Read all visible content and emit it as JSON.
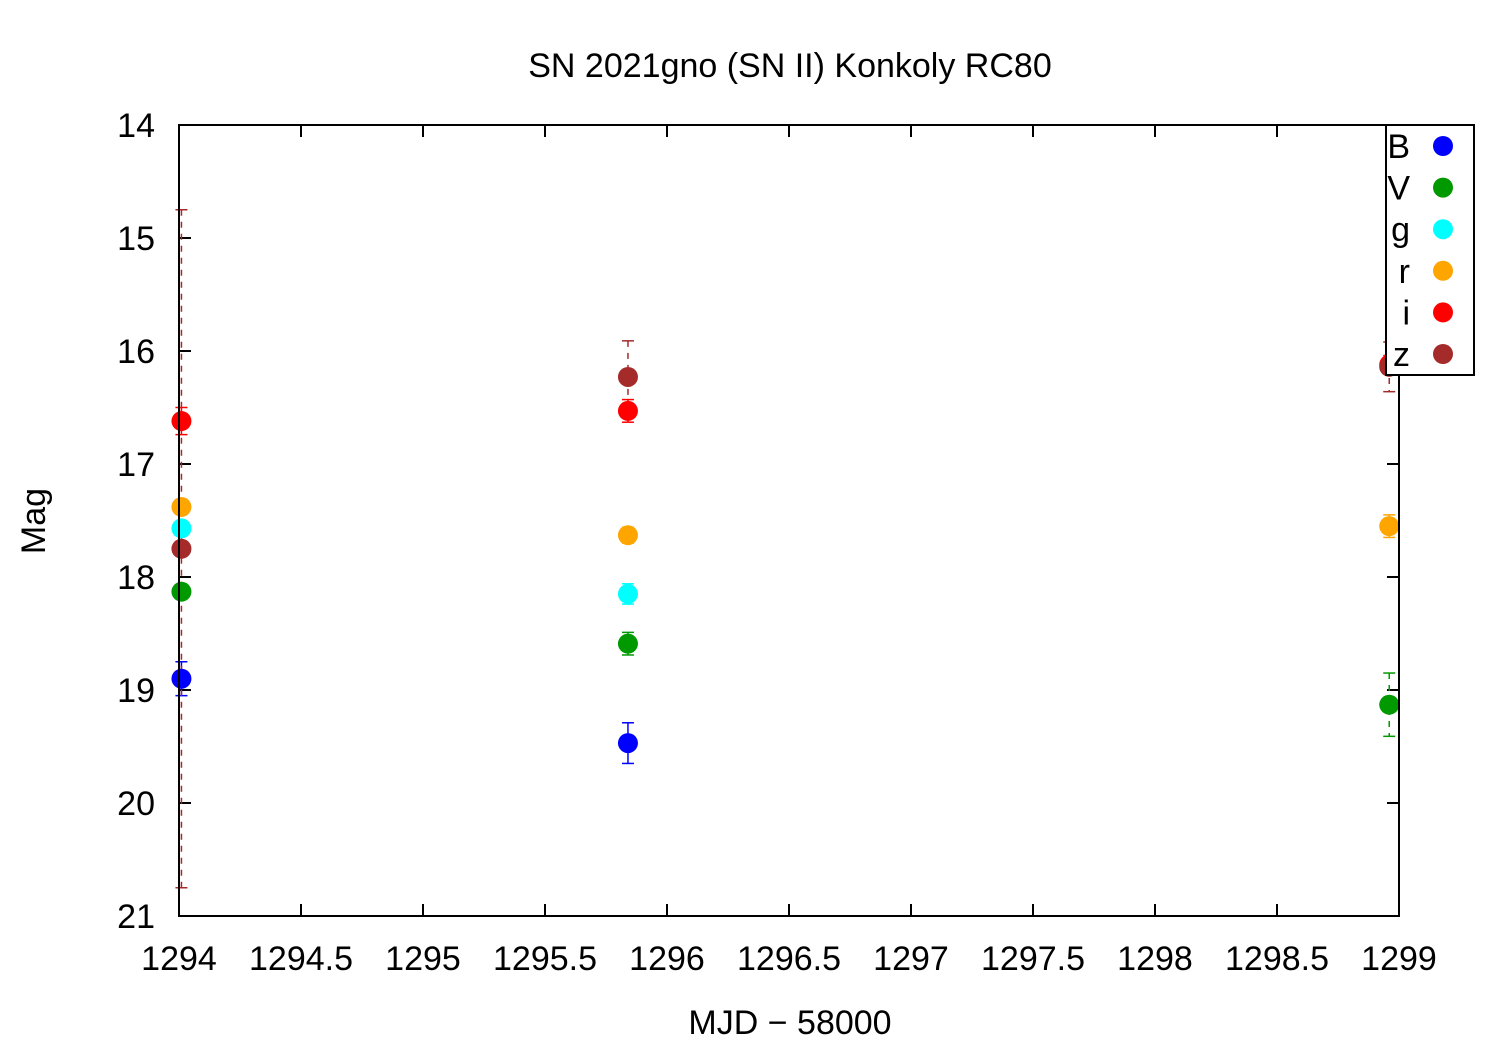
{
  "chart_data": {
    "type": "scatter",
    "title": "SN 2021gno (SN II) Konkoly RC80",
    "xlabel": "MJD − 58000",
    "ylabel": "Mag",
    "xlim": [
      1294,
      1299
    ],
    "ylim": [
      14,
      21
    ],
    "y_inverted": true,
    "x_ticks": [
      "1294",
      "1294.5",
      "1295",
      "1295.5",
      "1296",
      "1296.5",
      "1297",
      "1297.5",
      "1298",
      "1298.5",
      "1299"
    ],
    "y_ticks": [
      "14",
      "15",
      "16",
      "17",
      "18",
      "19",
      "20",
      "21"
    ],
    "grid": false,
    "legend_position": "top-right",
    "series": [
      {
        "name": "B",
        "color": "#0000ff",
        "points": [
          {
            "x": 1294.01,
            "y": 18.9,
            "err": 0.15
          },
          {
            "x": 1295.84,
            "y": 19.47,
            "err": 0.18
          }
        ]
      },
      {
        "name": "V",
        "color": "#009900",
        "points": [
          {
            "x": 1294.01,
            "y": 18.13,
            "err": 0.05
          },
          {
            "x": 1295.84,
            "y": 18.59,
            "err": 0.1
          },
          {
            "x": 1298.96,
            "y": 19.13,
            "err": 0.28
          }
        ]
      },
      {
        "name": "g",
        "color": "#00ffff",
        "points": [
          {
            "x": 1294.01,
            "y": 17.57,
            "err": 0.04
          },
          {
            "x": 1295.84,
            "y": 18.15,
            "err": 0.09
          }
        ]
      },
      {
        "name": "r",
        "color": "#ffa500",
        "points": [
          {
            "x": 1294.01,
            "y": 17.38,
            "err": 0.04
          },
          {
            "x": 1295.84,
            "y": 17.63,
            "err": 0.07
          },
          {
            "x": 1298.96,
            "y": 17.55,
            "err": 0.1
          }
        ]
      },
      {
        "name": "i",
        "color": "#ff0000",
        "points": [
          {
            "x": 1294.01,
            "y": 16.62,
            "err": 0.12
          },
          {
            "x": 1295.84,
            "y": 16.53,
            "err": 0.1
          },
          {
            "x": 1298.96,
            "y": 16.12,
            "err": 0.08
          }
        ]
      },
      {
        "name": "z",
        "color": "#a52a2a",
        "points": [
          {
            "x": 1294.01,
            "y": 17.75,
            "err": 3.0
          },
          {
            "x": 1295.84,
            "y": 16.23,
            "err": 0.32
          },
          {
            "x": 1298.96,
            "y": 16.14,
            "err": 0.22
          }
        ]
      }
    ]
  }
}
